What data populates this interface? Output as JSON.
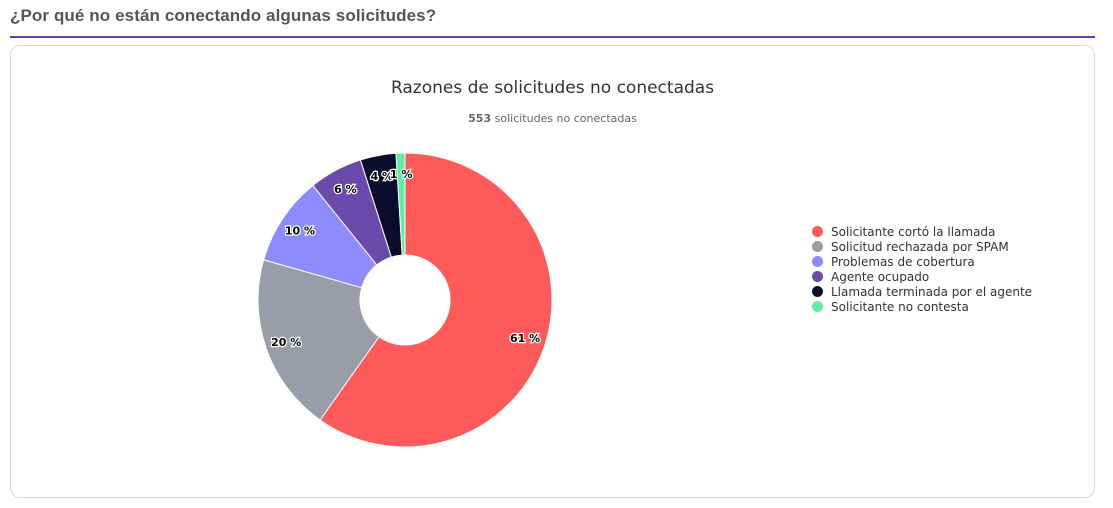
{
  "header": {
    "title": "¿Por qué no están conectando algunas solicitudes?"
  },
  "chart_data": {
    "type": "pie",
    "title": "Razones de solicitudes no conectadas",
    "subtitle_count": "553",
    "subtitle_text": " solicitudes no conectadas",
    "legend_position": "right",
    "categories": [
      "Solicitante cortó la llamada",
      "Solicitud rechazada por SPAM",
      "Problemas de cobertura",
      "Agente ocupado",
      "Llamada terminada por el agente",
      "Solicitante no contesta"
    ],
    "values": [
      61,
      20,
      10,
      6,
      4,
      1
    ],
    "labels": [
      "61 %",
      "20 %",
      "10 %",
      "6 %",
      "4 %",
      "1 %"
    ],
    "colors": [
      "#ff5a5a",
      "#9a9ca8",
      "#8c8cff",
      "#6a4bad",
      "#0c0c2c",
      "#5ef0a0"
    ]
  }
}
